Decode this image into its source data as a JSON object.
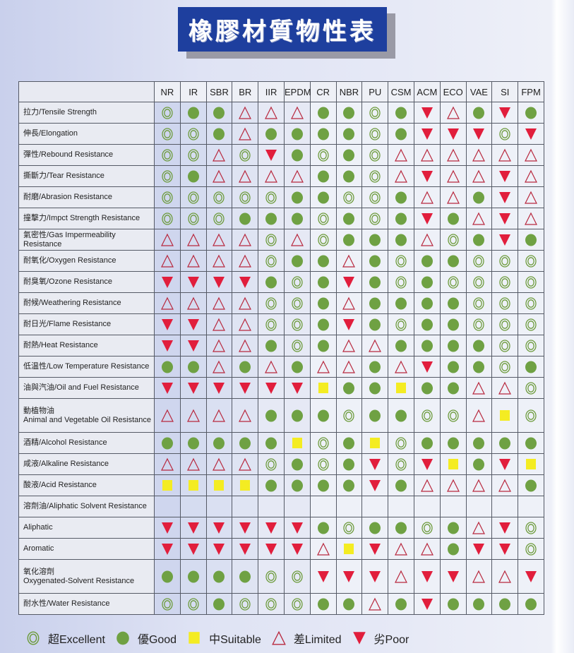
{
  "title": "橡膠材質物性表",
  "colors": {
    "excellent": "#6d9b3c",
    "good": "#6fa143",
    "suitable": "#f4ec22",
    "limited": "#b8283e",
    "poor": "#e11e3c",
    "banner": "#1e3f9e"
  },
  "symbol_key": {
    "E": "excellent-double-circle",
    "G": "good-filled-circle",
    "S": "suitable-yellow-square",
    "L": "limited-outline-triangle",
    "P": "poor-filled-down-triangle"
  },
  "columns": [
    "NR",
    "IR",
    "SBR",
    "BR",
    "IIR",
    "EPDM",
    "CR",
    "NBR",
    "PU",
    "CSM",
    "ACM",
    "ECO",
    "VAE",
    "SI",
    "FPM"
  ],
  "rows": [
    {
      "label": "拉力/Tensile Strength",
      "ratings": "EGGLLLGGEGPLGPG"
    },
    {
      "label": "伸長/Elongation",
      "ratings": "EEGLGGGGEGPPPEP"
    },
    {
      "label": "彈性/Rebound Resistance",
      "ratings": "EELEPGEGELLLLLL"
    },
    {
      "label": "撕斷力/Tear Resistance",
      "ratings": "EGLLLLGGELPLLPL"
    },
    {
      "label": "耐磨/Abrasion Resistance",
      "ratings": "EEEEEGGEEGLLGPL"
    },
    {
      "label": "撞擊力/Impct Strength Resistance",
      "ratings": "EEEGGGEGEGPGLPL"
    },
    {
      "label": "氣密性/Gas Impermeability Resistance",
      "ratings": "LLLLELEGGGLEGPG"
    },
    {
      "label": "耐氧化/Oxygen Resistance",
      "ratings": "LLLLEGGLGEGGEEE"
    },
    {
      "label": "耐臭氧/Ozone Resistance",
      "ratings": "PPPPGEGPGEGEEEE"
    },
    {
      "label": "耐候/Weathering Resistance",
      "ratings": "LLLLEEGLGGGGEEE"
    },
    {
      "label": "耐日光/Flame Resistance",
      "ratings": "PPLLEEGPGEGGEEE"
    },
    {
      "label": "耐熱/Heat Resistance",
      "ratings": "PPLLGEGLLGGGGEE"
    },
    {
      "label": "低温性/Low Temperature Resistance",
      "ratings": "GGLGLGLLGLPGGEG"
    },
    {
      "label": "油與汽油/Oil and Fuel Resistance",
      "ratings": "PPPPPPSGGSGGLLE"
    },
    {
      "label": "動植物油",
      "label2": "Animal and Vegetable Oil Resistance",
      "ratings": "LLLLGGGEGGEELSE",
      "tall": true
    },
    {
      "label": "酒精/Alcohol Resistance",
      "ratings": "GGGGGSEGSEGGGGG"
    },
    {
      "label": "咸液/Alkaline Resistance",
      "ratings": "LLLLEGEGPEPSGPS"
    },
    {
      "label": "酸液/Acid Resistance",
      "ratings": "SSSSGGGGPGLLLLG"
    },
    {
      "label": "溶劑油/Aliphatic Solvent Resistance",
      "ratings": "---------------"
    },
    {
      "label": "Aliphatic",
      "ratings": "PPPPPPGEGGEGLPE"
    },
    {
      "label": "Aromatic",
      "ratings": "PPPPPPLSPLLGPPE"
    },
    {
      "label": "氧化溶劑",
      "label2": "Oxygenated-Solvent Resistance",
      "ratings": "GGGGEEPPPLPPLLP",
      "tall": true
    },
    {
      "label": "耐水性/Water Resistance",
      "ratings": "EEGEEEGGLGPGGGG"
    }
  ],
  "legend": [
    {
      "code": "E",
      "label": "超Excellent"
    },
    {
      "code": "G",
      "label": "優Good"
    },
    {
      "code": "S",
      "label": "中Suitable"
    },
    {
      "code": "L",
      "label": "差Limited"
    },
    {
      "code": "P",
      "label": "劣Poor"
    }
  ]
}
